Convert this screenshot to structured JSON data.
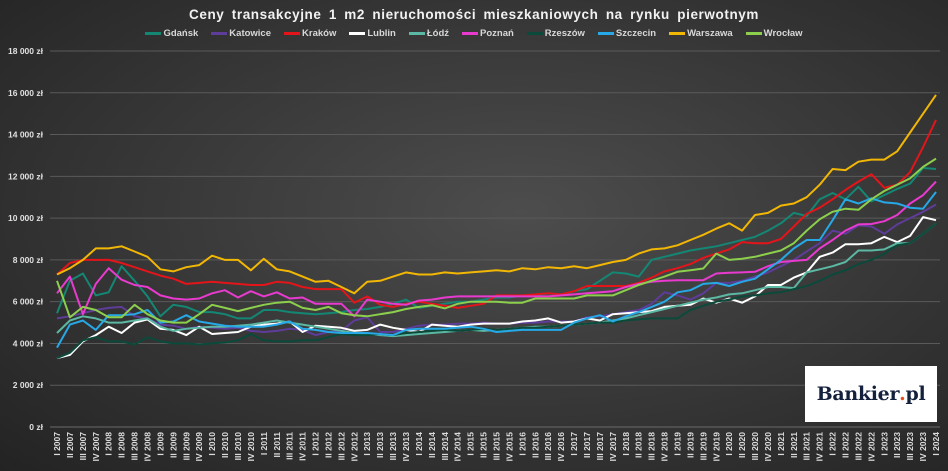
{
  "chart_data": {
    "type": "line",
    "title": "Ceny transakcyjne  1 m2  nieruchomości  mieszkaniowych  na rynku  pierwotnym",
    "xlabel": "",
    "ylabel": "",
    "ylim": [
      0,
      18000
    ],
    "yticks": [
      0,
      2000,
      4000,
      6000,
      8000,
      10000,
      12000,
      14000,
      16000,
      18000
    ],
    "ytick_labels": [
      "0 zł",
      "2 000 zł",
      "4 000 zł",
      "6 000 zł",
      "8 000 zł",
      "10 000 zł",
      "12 000 zł",
      "14 000 zł",
      "16 000 zł",
      "18 000 zł"
    ],
    "grid": true,
    "legend_placement": "top",
    "categories": [
      "I 2007",
      "II 2007",
      "III 2007",
      "IV 2007",
      "I 2008",
      "II 2008",
      "III 2008",
      "IV 2008",
      "I 2009",
      "II 2009",
      "III 2009",
      "IV 2009",
      "I 2010",
      "II 2010",
      "III 2010",
      "IV 2010",
      "I 2011",
      "II 2011",
      "III 2011",
      "IV 2011",
      "I 2012",
      "II 2012",
      "III 2012",
      "IV 2012",
      "I 2013",
      "II 2013",
      "III 2013",
      "IV 2013",
      "I 2014",
      "II 2014",
      "III 2014",
      "IV 2014",
      "I 2015",
      "II 2015",
      "III 2015",
      "IV 2015",
      "I 2016",
      "II 2016",
      "III 2016",
      "IV 2016",
      "I 2017",
      "II 2017",
      "III 2017",
      "IV 2017",
      "I 2018",
      "II 2018",
      "III 2018",
      "IV 2018",
      "I 2019",
      "II 2019",
      "III 2019",
      "IV 2019",
      "I 2020",
      "II 2020",
      "III 2020",
      "IV 2020",
      "I 2021",
      "II 2021",
      "III 2021",
      "IV 2021",
      "I 2022",
      "II 2022",
      "III 2022",
      "IV 2022",
      "I 2023",
      "II 2023",
      "III 2023",
      "IV 2023",
      "I 2024"
    ],
    "series": [
      {
        "name": "Gdańsk",
        "color": "#148774",
        "values": [
          5450,
          7000,
          7350,
          6300,
          6450,
          7700,
          7000,
          6250,
          5300,
          5850,
          5750,
          5500,
          5500,
          5400,
          5200,
          5200,
          5600,
          5600,
          5500,
          5450,
          5400,
          5450,
          5500,
          5600,
          5650,
          5750,
          5900,
          6100,
          5700,
          5800,
          5900,
          6000,
          6000,
          6100,
          6200,
          6200,
          6300,
          6300,
          6400,
          6300,
          6500,
          6600,
          7000,
          7400,
          7350,
          7200,
          8000,
          8150,
          8300,
          8450,
          8550,
          8650,
          8800,
          8950,
          9100,
          9400,
          9750,
          10250,
          10100,
          10900,
          11200,
          10900,
          11500,
          10800,
          11100,
          11400,
          11650,
          12400,
          12350
        ]
      },
      {
        "name": "Katowice",
        "color": "#5e3c99",
        "values": [
          5200,
          5300,
          5450,
          5600,
          5700,
          5750,
          5300,
          5200,
          4900,
          4850,
          4700,
          4800,
          4750,
          4700,
          4750,
          4600,
          4550,
          4600,
          4700,
          4650,
          4400,
          4550,
          4600,
          5100,
          5250,
          4550,
          4550,
          4700,
          4850,
          4900,
          4900,
          4950,
          4950,
          5000,
          4950,
          4950,
          5000,
          5000,
          5050,
          5050,
          5050,
          5250,
          5300,
          5400,
          5500,
          5600,
          5900,
          6450,
          6300,
          6100,
          6400,
          6900,
          6900,
          7000,
          7200,
          7400,
          7700,
          8000,
          8400,
          8800,
          9400,
          9250,
          9650,
          9600,
          9250,
          9700,
          10000,
          10300,
          10650
        ]
      },
      {
        "name": "Kraków",
        "color": "#e3151a",
        "values": [
          7300,
          7850,
          8000,
          8000,
          8000,
          7850,
          7650,
          7450,
          7250,
          7100,
          6850,
          6900,
          6950,
          6900,
          6850,
          6800,
          6800,
          6950,
          6900,
          6700,
          6600,
          6600,
          6600,
          5950,
          6250,
          5850,
          5750,
          5900,
          6000,
          5900,
          5800,
          5700,
          5800,
          5900,
          6300,
          6300,
          6300,
          6350,
          6400,
          6350,
          6500,
          6750,
          6750,
          6750,
          6750,
          6900,
          7150,
          7450,
          7600,
          7800,
          8100,
          8300,
          8500,
          8850,
          8800,
          8800,
          9000,
          9600,
          10200,
          10500,
          10900,
          11350,
          11750,
          12100,
          11450,
          11600,
          12200,
          13400,
          14700
        ]
      },
      {
        "name": "Lublin",
        "color": "#ffffff",
        "values": [
          3300,
          3450,
          4100,
          4400,
          4800,
          4500,
          5000,
          5150,
          4700,
          4650,
          4400,
          4800,
          4450,
          4500,
          4550,
          4800,
          4900,
          4950,
          5050,
          4550,
          4850,
          4800,
          4750,
          4600,
          4650,
          4900,
          4750,
          4650,
          4550,
          4900,
          4850,
          4800,
          4900,
          4950,
          4950,
          4950,
          5050,
          5100,
          5200,
          5000,
          5050,
          5200,
          5100,
          5400,
          5450,
          5500,
          5550,
          5750,
          5800,
          5850,
          6150,
          5950,
          6150,
          5950,
          6250,
          6800,
          6800,
          7150,
          7400,
          8150,
          8350,
          8750,
          8750,
          8800,
          9100,
          8850,
          9150,
          10050,
          9900
        ]
      },
      {
        "name": "Łódź",
        "color": "#5bb8a3",
        "values": [
          4500,
          5100,
          5300,
          5200,
          5000,
          5000,
          5100,
          5200,
          4800,
          4600,
          4700,
          4750,
          4800,
          4800,
          4850,
          4900,
          5000,
          5100,
          5000,
          4900,
          4800,
          4700,
          4600,
          4500,
          4450,
          4400,
          4350,
          4400,
          4450,
          4500,
          4550,
          4600,
          4650,
          4600,
          4650,
          4700,
          4750,
          4800,
          4800,
          4850,
          4900,
          4950,
          5000,
          5100,
          5200,
          5350,
          5500,
          5650,
          5800,
          5950,
          6100,
          6200,
          6350,
          6400,
          6550,
          6700,
          6700,
          6650,
          7400,
          7550,
          7700,
          7900,
          8450,
          8450,
          8500,
          8800,
          8800,
          9250,
          9750
        ]
      },
      {
        "name": "Poznań",
        "color": "#e93ad0",
        "values": [
          6400,
          7200,
          5400,
          6850,
          7600,
          7050,
          6800,
          6700,
          6300,
          6150,
          6100,
          6150,
          6400,
          6550,
          6200,
          6500,
          6250,
          6450,
          6150,
          6200,
          5900,
          5900,
          5900,
          5300,
          6100,
          6000,
          5900,
          5850,
          6050,
          6100,
          6200,
          6250,
          6250,
          6250,
          6250,
          6250,
          6250,
          6250,
          6250,
          6300,
          6350,
          6400,
          6450,
          6500,
          6700,
          6850,
          6950,
          7000,
          7030,
          7030,
          7030,
          7350,
          7380,
          7400,
          7430,
          7700,
          7900,
          7950,
          8000,
          8550,
          8950,
          9400,
          9700,
          9720,
          9850,
          10150,
          10700,
          11100,
          11750
        ]
      },
      {
        "name": "Rzeszów",
        "color": "#0b4a3a",
        "values": [
          3300,
          3550,
          4150,
          4300,
          4100,
          4100,
          3950,
          4300,
          4100,
          4000,
          4000,
          3950,
          4000,
          4050,
          4150,
          4450,
          4150,
          4100,
          4100,
          4150,
          4150,
          4300,
          4450,
          4400,
          4400,
          4450,
          4400,
          4500,
          4550,
          4600,
          4650,
          4600,
          4650,
          4700,
          4650,
          4700,
          4750,
          4750,
          4800,
          4850,
          4900,
          4950,
          5000,
          5000,
          5100,
          5150,
          5200,
          5200,
          5200,
          5600,
          5800,
          6000,
          6100,
          6250,
          6300,
          6400,
          6450,
          6600,
          6750,
          7000,
          7300,
          7500,
          7800,
          8000,
          8300,
          8700,
          8800,
          9250,
          9750
        ]
      },
      {
        "name": "Szczecin",
        "color": "#26a9e6",
        "values": [
          3800,
          4900,
          5100,
          4650,
          5350,
          5350,
          5400,
          5600,
          5000,
          5050,
          5350,
          5050,
          4950,
          4850,
          4800,
          4800,
          4800,
          4900,
          5050,
          4700,
          4650,
          4550,
          4500,
          4500,
          4500,
          4450,
          4400,
          4650,
          4700,
          4700,
          4700,
          4750,
          4800,
          4700,
          4550,
          4600,
          4650,
          4650,
          4650,
          4650,
          5000,
          5200,
          5350,
          5050,
          5300,
          5500,
          5750,
          6000,
          6450,
          6550,
          6850,
          6900,
          6750,
          6950,
          7100,
          7550,
          8000,
          8550,
          8950,
          8950,
          9900,
          10900,
          10700,
          10950,
          10750,
          10700,
          10500,
          10450,
          11250
        ]
      },
      {
        "name": "Warszawa",
        "color": "#f2b705",
        "values": [
          7300,
          7600,
          8000,
          8550,
          8550,
          8650,
          8400,
          8150,
          7550,
          7450,
          7650,
          7750,
          8200,
          8000,
          8000,
          7500,
          8050,
          7550,
          7450,
          7200,
          6950,
          7000,
          6700,
          6400,
          6950,
          7000,
          7200,
          7400,
          7300,
          7300,
          7400,
          7350,
          7400,
          7450,
          7500,
          7450,
          7600,
          7550,
          7650,
          7600,
          7700,
          7600,
          7750,
          7900,
          8000,
          8300,
          8500,
          8550,
          8700,
          8950,
          9200,
          9500,
          9750,
          9400,
          10150,
          10250,
          10600,
          10700,
          11000,
          11600,
          12350,
          12300,
          12700,
          12800,
          12800,
          13200,
          14100,
          15000,
          15900
        ]
      },
      {
        "name": "Wrocław",
        "color": "#8ccf4d",
        "values": [
          7000,
          5250,
          5750,
          5600,
          5250,
          5250,
          5850,
          5400,
          5100,
          5000,
          5000,
          5400,
          5850,
          5700,
          5550,
          5700,
          5850,
          5950,
          6000,
          5700,
          5600,
          5750,
          5450,
          5350,
          5300,
          5400,
          5500,
          5650,
          5750,
          5830,
          5680,
          5900,
          6000,
          6000,
          6000,
          5950,
          5950,
          6150,
          6150,
          6150,
          6150,
          6300,
          6300,
          6300,
          6550,
          6800,
          7000,
          7200,
          7430,
          7500,
          7590,
          8300,
          8000,
          8050,
          8150,
          8300,
          8450,
          8800,
          9400,
          9950,
          10300,
          10450,
          10400,
          10900,
          11300,
          11600,
          11900,
          12450,
          12850
        ]
      }
    ]
  },
  "logo": {
    "text_main": "Bankier",
    "text_dot": ".",
    "text_suffix": "pl"
  }
}
